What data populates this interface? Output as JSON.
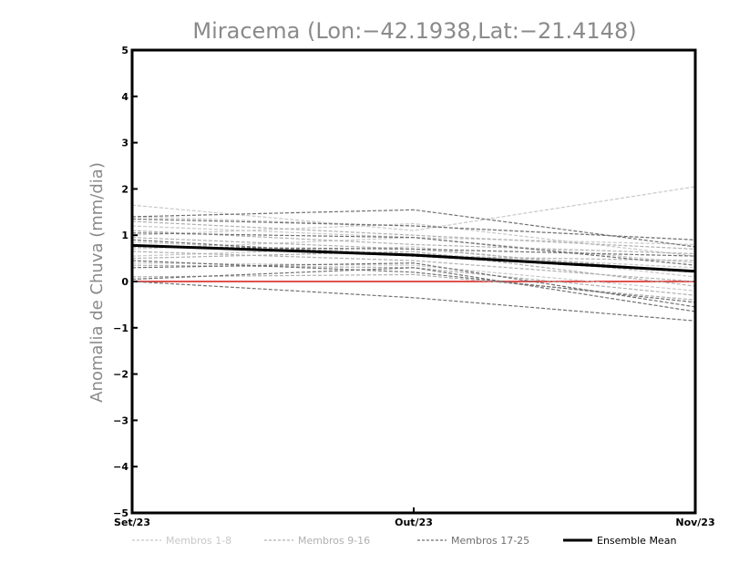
{
  "chart_data": {
    "type": "line",
    "title": "Miracema (Lon:−42.1938,Lat:−21.4148)",
    "xlabel": "",
    "ylabel": "Anomalia de Chuva (mm/dia)",
    "categories": [
      "Set/23",
      "Out/23",
      "Nov/23"
    ],
    "yticks": [
      "−5",
      "−4",
      "−3",
      "−2",
      "−1",
      "0",
      "1",
      "2",
      "3",
      "4",
      "5"
    ],
    "ylim": [
      -5,
      5
    ],
    "grid": false,
    "legend_position": "bottom",
    "zero_line_color": "#e05050",
    "groups": [
      {
        "name": "Membros 1-8",
        "color": "#c8c8c8",
        "members": [
          [
            1.65,
            1.1,
            2.05
          ],
          [
            1.4,
            1.2,
            0.9
          ],
          [
            1.2,
            0.95,
            0.8
          ],
          [
            1.0,
            1.25,
            0.55
          ],
          [
            0.85,
            0.6,
            0.3
          ],
          [
            0.7,
            0.95,
            0.4
          ],
          [
            0.55,
            0.75,
            0.1
          ],
          [
            0.4,
            0.35,
            -0.2
          ]
        ]
      },
      {
        "name": "Membros 9-16",
        "color": "#b0b0b0",
        "members": [
          [
            1.3,
            1.0,
            0.7
          ],
          [
            1.1,
            0.8,
            0.6
          ],
          [
            0.95,
            0.7,
            0.2
          ],
          [
            0.8,
            0.55,
            0.45
          ],
          [
            0.65,
            0.45,
            0.0
          ],
          [
            0.5,
            0.65,
            -0.1
          ],
          [
            0.35,
            0.3,
            -0.3
          ],
          [
            0.1,
            0.15,
            -0.4
          ]
        ]
      },
      {
        "name": "Membros 17-25",
        "color": "#707070",
        "members": [
          [
            1.4,
            1.55,
            0.75
          ],
          [
            1.35,
            1.2,
            0.9
          ],
          [
            1.05,
            0.95,
            0.35
          ],
          [
            0.9,
            0.55,
            0.2
          ],
          [
            0.75,
            0.7,
            0.55
          ],
          [
            0.45,
            0.2,
            -0.45
          ],
          [
            0.3,
            0.4,
            -0.55
          ],
          [
            0.05,
            0.3,
            -0.65
          ],
          [
            0.0,
            -0.35,
            -0.85
          ]
        ]
      }
    ],
    "ensemble_mean": {
      "name": "Ensemble Mean",
      "color": "#000000",
      "values": [
        0.78,
        0.57,
        0.22
      ]
    }
  }
}
